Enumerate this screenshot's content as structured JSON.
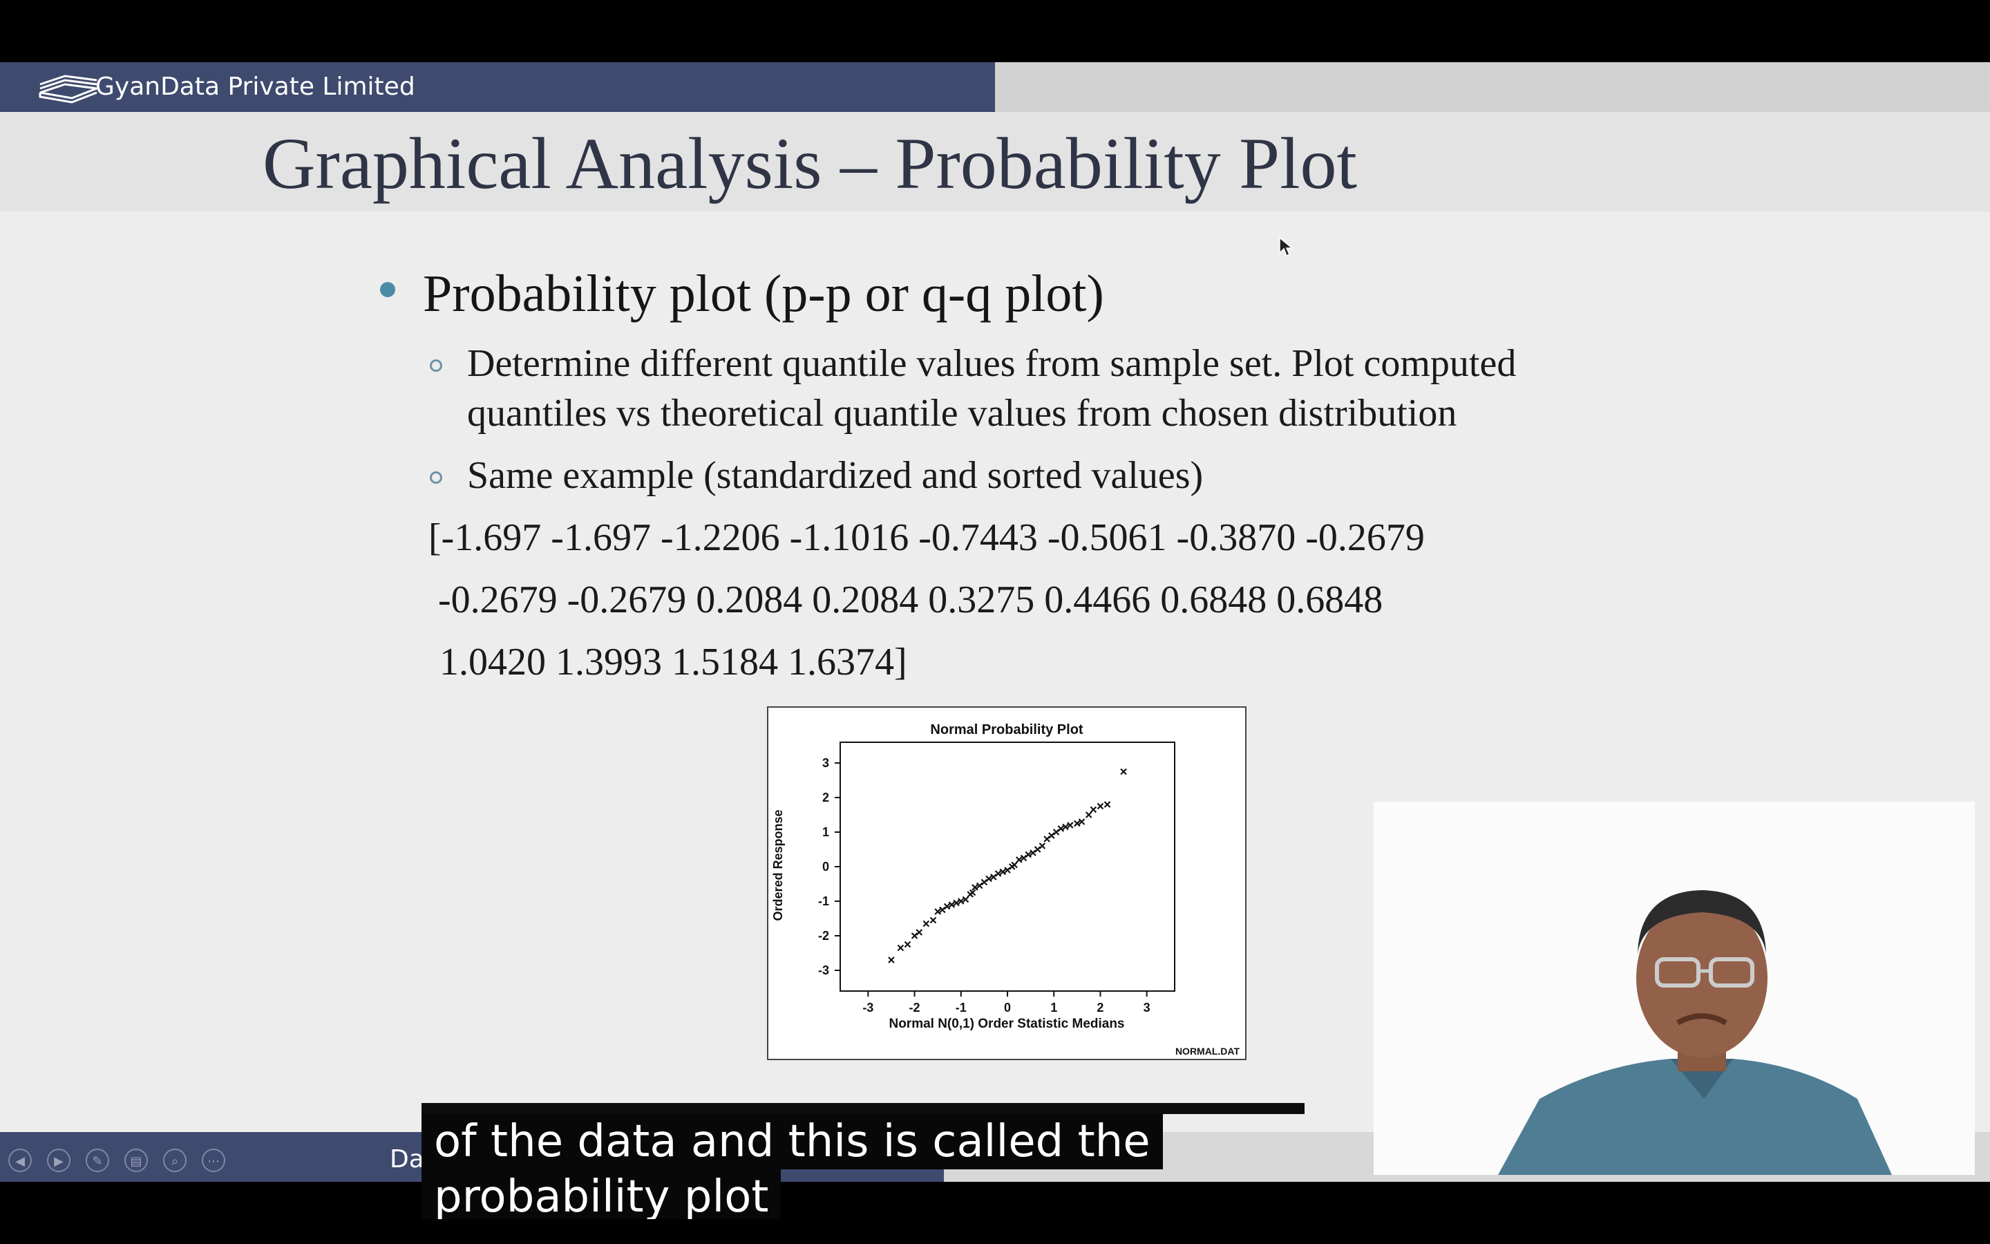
{
  "brand": {
    "name": "GyanData Private Limited"
  },
  "slide": {
    "title": "Graphical Analysis – Probability Plot",
    "bullet": "Probability plot (p-p or q-q plot)",
    "sub_bullets": [
      "Determine different quantile values from sample set.  Plot computed",
      "quantiles vs theoretical quantile values from chosen distribution",
      "Same example (standardized and sorted values)"
    ],
    "data_lines": [
      "[-1.697 -1.697 -1.2206 -1.1016 -0.7443 -0.5061 -0.3870 -0.2679",
      "-0.2679 -0.2679 0.2084 0.2084 0.3275 0.4466 0.6848 0.6848",
      "1.0420 1.3993 1.5184 1.6374]"
    ]
  },
  "footer": {
    "text": "Data Analytics",
    "visible_text": "Da"
  },
  "controls": [
    "prev-icon",
    "next-icon",
    "pen-icon",
    "slides-icon",
    "zoom-icon",
    "more-icon"
  ],
  "captions": [
    "of the data and this is called the",
    "probability plot"
  ],
  "colors": {
    "header_bar": "#3e4a6e",
    "title": "#2f3446",
    "bullet": "#4b8ba6",
    "slide_bg": "#ededed"
  },
  "chart_data": {
    "type": "scatter",
    "title": "Normal Probability Plot",
    "xlabel": "Normal N(0,1) Order Statistic Medians",
    "ylabel": "Ordered Response",
    "note": "NORMAL.DAT",
    "xlim": [
      -3.6,
      3.6
    ],
    "ylim": [
      -3.6,
      3.6
    ],
    "xticks": [
      -3,
      -2,
      -1,
      0,
      1,
      2,
      3
    ],
    "yticks": [
      -3,
      -2,
      -1,
      0,
      1,
      2,
      3
    ],
    "marker": "x",
    "points": [
      [
        -2.5,
        -2.7
      ],
      [
        -2.3,
        -2.35
      ],
      [
        -2.15,
        -2.25
      ],
      [
        -2.0,
        -2.0
      ],
      [
        -1.9,
        -1.9
      ],
      [
        -1.75,
        -1.65
      ],
      [
        -1.6,
        -1.55
      ],
      [
        -1.5,
        -1.3
      ],
      [
        -1.4,
        -1.25
      ],
      [
        -1.3,
        -1.15
      ],
      [
        -1.2,
        -1.1
      ],
      [
        -1.1,
        -1.05
      ],
      [
        -1.0,
        -1.0
      ],
      [
        -0.9,
        -0.95
      ],
      [
        -0.8,
        -0.8
      ],
      [
        -0.75,
        -0.75
      ],
      [
        -0.7,
        -0.6
      ],
      [
        -0.6,
        -0.55
      ],
      [
        -0.5,
        -0.45
      ],
      [
        -0.4,
        -0.35
      ],
      [
        -0.3,
        -0.3
      ],
      [
        -0.2,
        -0.2
      ],
      [
        -0.1,
        -0.15
      ],
      [
        0.0,
        -0.1
      ],
      [
        0.1,
        0.0
      ],
      [
        0.15,
        0.05
      ],
      [
        0.25,
        0.2
      ],
      [
        0.35,
        0.25
      ],
      [
        0.45,
        0.35
      ],
      [
        0.55,
        0.4
      ],
      [
        0.65,
        0.5
      ],
      [
        0.75,
        0.6
      ],
      [
        0.85,
        0.8
      ],
      [
        0.95,
        0.9
      ],
      [
        1.05,
        1.0
      ],
      [
        1.15,
        1.1
      ],
      [
        1.25,
        1.15
      ],
      [
        1.35,
        1.2
      ],
      [
        1.5,
        1.25
      ],
      [
        1.6,
        1.3
      ],
      [
        1.75,
        1.5
      ],
      [
        1.85,
        1.65
      ],
      [
        2.0,
        1.75
      ],
      [
        2.15,
        1.8
      ],
      [
        2.5,
        2.75
      ]
    ]
  }
}
